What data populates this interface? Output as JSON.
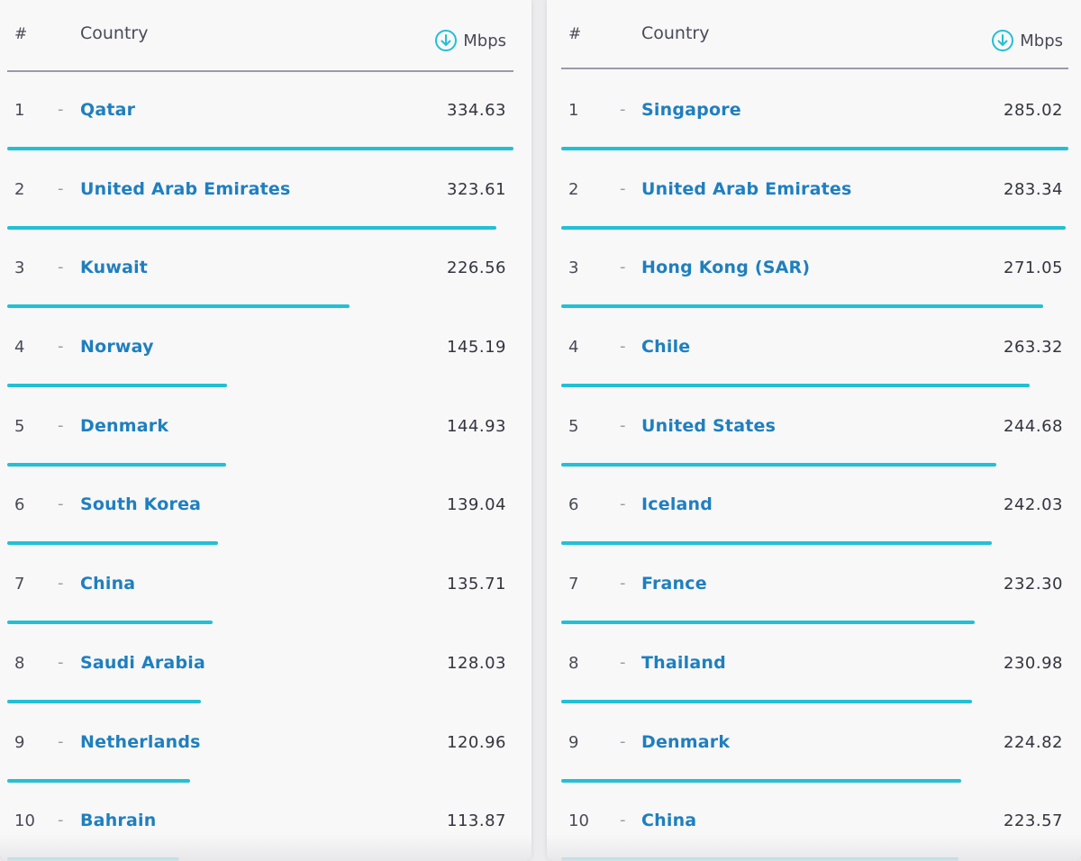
{
  "colors": {
    "accent": "#22c0d4",
    "link": "#1f7fbf",
    "text": "#34343f",
    "muted": "#9a9aa8"
  },
  "left": {
    "header": {
      "rank": "#",
      "country": "Country",
      "unit": "Mbps",
      "unit_icon": "arrow-down-circle-icon"
    },
    "max_value": 334.63,
    "rows": [
      {
        "rank": "1",
        "sep": "-",
        "country": "Qatar",
        "value": "334.63",
        "fraction": 1.0
      },
      {
        "rank": "2",
        "sep": "-",
        "country": "United Arab Emirates",
        "value": "323.61",
        "fraction": 0.967
      },
      {
        "rank": "3",
        "sep": "-",
        "country": "Kuwait",
        "value": "226.56",
        "fraction": 0.677
      },
      {
        "rank": "4",
        "sep": "-",
        "country": "Norway",
        "value": "145.19",
        "fraction": 0.434
      },
      {
        "rank": "5",
        "sep": "-",
        "country": "Denmark",
        "value": "144.93",
        "fraction": 0.433
      },
      {
        "rank": "6",
        "sep": "-",
        "country": "South Korea",
        "value": "139.04",
        "fraction": 0.416
      },
      {
        "rank": "7",
        "sep": "-",
        "country": "China",
        "value": "135.71",
        "fraction": 0.406
      },
      {
        "rank": "8",
        "sep": "-",
        "country": "Saudi Arabia",
        "value": "128.03",
        "fraction": 0.383
      },
      {
        "rank": "9",
        "sep": "-",
        "country": "Netherlands",
        "value": "120.96",
        "fraction": 0.361
      },
      {
        "rank": "10",
        "sep": "-",
        "country": "Bahrain",
        "value": "113.87",
        "fraction": 0.34
      }
    ]
  },
  "right": {
    "header": {
      "rank": "#",
      "country": "Country",
      "unit": "Mbps",
      "unit_icon": "arrow-down-circle-icon"
    },
    "max_value": 285.02,
    "rows": [
      {
        "rank": "1",
        "sep": "-",
        "country": "Singapore",
        "value": "285.02",
        "fraction": 1.0
      },
      {
        "rank": "2",
        "sep": "-",
        "country": "United Arab Emirates",
        "value": "283.34",
        "fraction": 0.994
      },
      {
        "rank": "3",
        "sep": "-",
        "country": "Hong Kong (SAR)",
        "value": "271.05",
        "fraction": 0.951
      },
      {
        "rank": "4",
        "sep": "-",
        "country": "Chile",
        "value": "263.32",
        "fraction": 0.924
      },
      {
        "rank": "5",
        "sep": "-",
        "country": "United States",
        "value": "244.68",
        "fraction": 0.858
      },
      {
        "rank": "6",
        "sep": "-",
        "country": "Iceland",
        "value": "242.03",
        "fraction": 0.849
      },
      {
        "rank": "7",
        "sep": "-",
        "country": "France",
        "value": "232.30",
        "fraction": 0.815
      },
      {
        "rank": "8",
        "sep": "-",
        "country": "Thailand",
        "value": "230.98",
        "fraction": 0.81
      },
      {
        "rank": "9",
        "sep": "-",
        "country": "Denmark",
        "value": "224.82",
        "fraction": 0.789
      },
      {
        "rank": "10",
        "sep": "-",
        "country": "China",
        "value": "223.57",
        "fraction": 0.784
      }
    ]
  }
}
